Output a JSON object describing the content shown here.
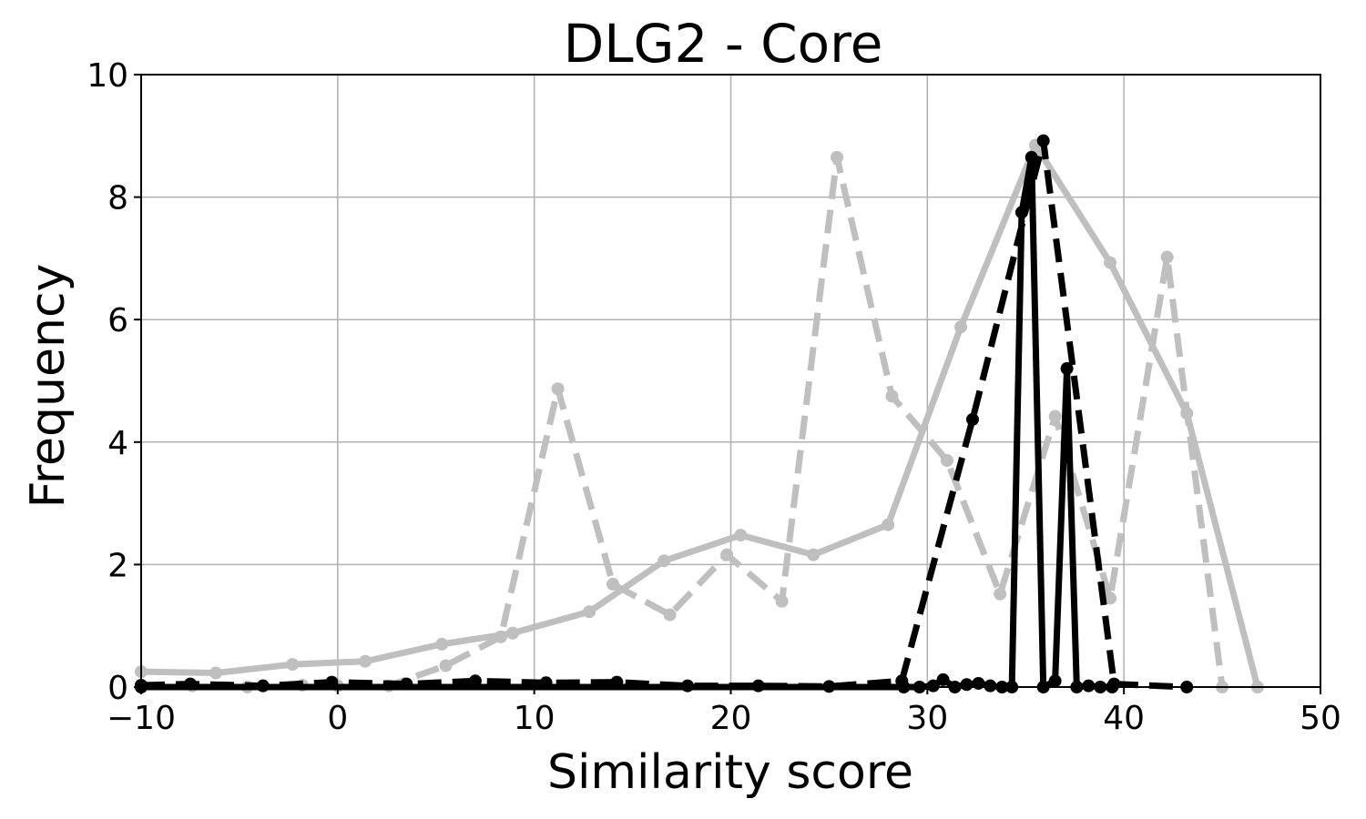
{
  "chart_data": {
    "type": "line",
    "title": "DLG2 - Core",
    "xlabel": "Similarity score",
    "ylabel": "Frequency",
    "xlim": [
      -10,
      50
    ],
    "ylim": [
      0,
      10
    ],
    "xticks": [
      -10,
      0,
      10,
      20,
      30,
      40,
      50
    ],
    "yticks": [
      0,
      2,
      4,
      6,
      8,
      10
    ],
    "xtick_labels": [
      "−10",
      "0",
      "10",
      "20",
      "30",
      "40",
      "50"
    ],
    "ytick_labels": [
      "0",
      "2",
      "4",
      "6",
      "8",
      "10"
    ],
    "grid": true,
    "series": [
      {
        "color": "#bfbfbf",
        "style": "solid",
        "x": [
          -10,
          -6.2,
          -2.3,
          1.4,
          5.3,
          8.9,
          12.8,
          16.6,
          20.5,
          24.2,
          28.0,
          31.7,
          35.5,
          39.3,
          43.2,
          46.8
        ],
        "y": [
          0.25,
          0.23,
          0.37,
          0.42,
          0.7,
          0.88,
          1.23,
          2.06,
          2.48,
          2.16,
          2.65,
          5.88,
          8.85,
          6.93,
          4.47,
          0.0
        ]
      },
      {
        "color": "#bfbfbf",
        "style": "dashed",
        "x": [
          -10,
          -7.4,
          -4.6,
          -1.8,
          0.0,
          2.6,
          5.5,
          8.3,
          11.2,
          14.0,
          16.9,
          19.8,
          22.6,
          25.4,
          28.2,
          31.0,
          33.7,
          36.5,
          39.3,
          42.2,
          45.0
        ],
        "y": [
          0.0,
          0.02,
          0.0,
          0.03,
          0.02,
          0.02,
          0.35,
          0.82,
          4.87,
          1.68,
          1.18,
          2.16,
          1.4,
          8.65,
          4.75,
          3.7,
          1.52,
          4.42,
          1.45,
          7.02,
          0.0
        ]
      },
      {
        "color": "#000000",
        "style": "dashed",
        "x": [
          -10,
          -7.5,
          -3.8,
          -0.3,
          3.5,
          7.0,
          10.6,
          14.2,
          17.8,
          21.4,
          25.0,
          28.7,
          32.3,
          35.9,
          39.5,
          43.2
        ],
        "y": [
          0.03,
          0.05,
          0.02,
          0.08,
          0.05,
          0.1,
          0.07,
          0.08,
          0.02,
          0.02,
          0.01,
          0.1,
          4.37,
          8.92,
          0.05,
          0.0
        ]
      },
      {
        "color": "#000000",
        "style": "solid",
        "x": [
          -10,
          28.8,
          29.6,
          30.3,
          30.8,
          31.4,
          32.0,
          32.6,
          33.2,
          33.8,
          34.3,
          34.8,
          35.3,
          35.9,
          36.5,
          37.1,
          37.6,
          38.2,
          38.8,
          39.4
        ],
        "y": [
          0.0,
          0.0,
          0.0,
          0.02,
          0.12,
          0.0,
          0.04,
          0.06,
          0.02,
          0.0,
          0.0,
          7.75,
          8.65,
          0.0,
          0.1,
          5.2,
          0.0,
          0.02,
          0.0,
          0.0
        ]
      }
    ]
  }
}
